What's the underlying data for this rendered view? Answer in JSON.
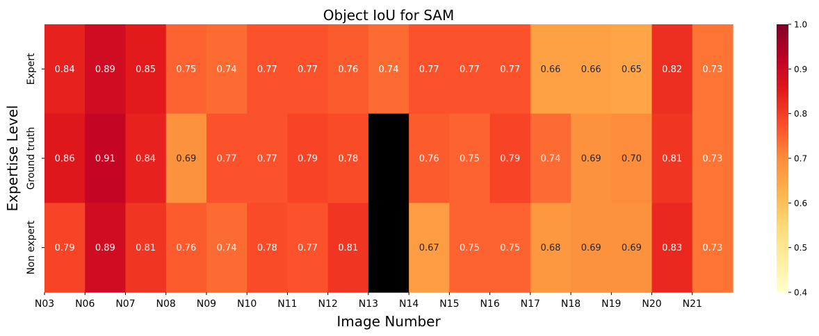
{
  "chart_data": {
    "type": "heatmap",
    "title": "Object IoU for SAM",
    "xlabel": "Image Number",
    "ylabel": "Expertise Level",
    "x_tick_labels": [
      "N03",
      "N06",
      "N07",
      "N08",
      "N09",
      "N10",
      "N11",
      "N12",
      "N13",
      "N14",
      "N15",
      "N16",
      "N17",
      "N18",
      "N19",
      "N20",
      "N21"
    ],
    "rows": [
      "Expert",
      "Ground truth",
      "Non expert"
    ],
    "values": [
      [
        0.84,
        0.89,
        0.85,
        0.75,
        0.74,
        0.77,
        0.77,
        0.76,
        0.74,
        0.77,
        0.77,
        0.77,
        0.66,
        0.66,
        0.65,
        0.82,
        0.73
      ],
      [
        0.86,
        0.91,
        0.84,
        0.69,
        0.77,
        0.77,
        0.79,
        0.78,
        null,
        0.76,
        0.75,
        0.79,
        0.74,
        0.69,
        0.7,
        0.81,
        0.73
      ],
      [
        0.79,
        0.89,
        0.81,
        0.76,
        0.74,
        0.78,
        0.77,
        0.81,
        null,
        0.67,
        0.75,
        0.75,
        0.68,
        0.69,
        0.69,
        0.83,
        0.73
      ]
    ],
    "missing_color": "#000000",
    "colormap": "YlOrRd",
    "vmin": 0.4,
    "vmax": 1.0,
    "colorbar_ticks": [
      "0.4",
      "0.5",
      "0.6",
      "0.7",
      "0.8",
      "0.9",
      "1.0"
    ]
  }
}
